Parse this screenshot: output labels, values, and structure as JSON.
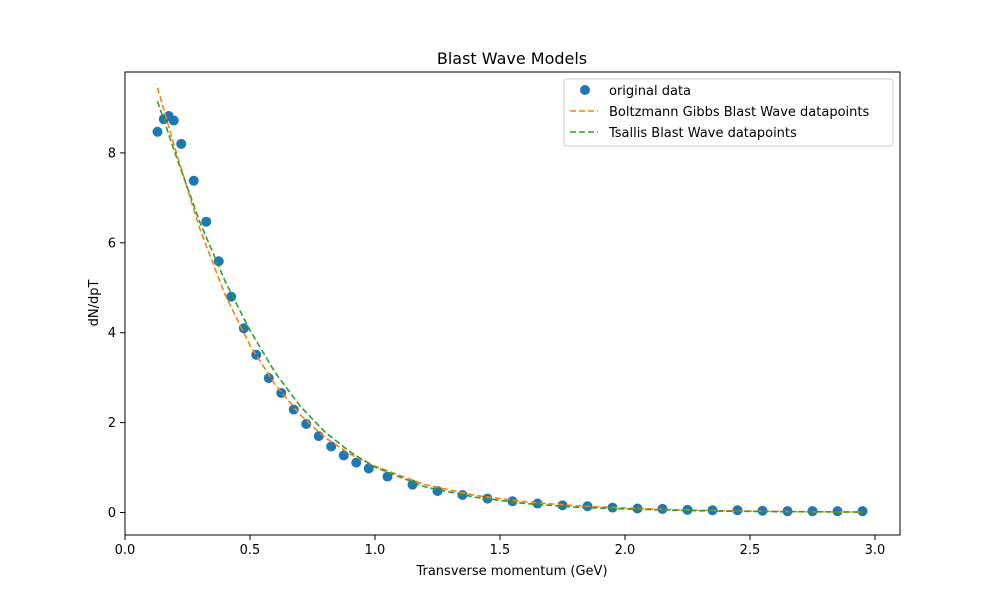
{
  "chart_data": {
    "type": "scatter",
    "title": "Blast Wave Models",
    "xlabel": "Transverse momentum (GeV)",
    "ylabel": "dN/dpT",
    "xlim": [
      0.0,
      3.1
    ],
    "ylim": [
      -0.5,
      9.8
    ],
    "xticks": [
      0.0,
      0.5,
      1.0,
      1.5,
      2.0,
      2.5,
      3.0
    ],
    "xtick_labels": [
      "0.0",
      "0.5",
      "1.0",
      "1.5",
      "2.0",
      "2.5",
      "3.0"
    ],
    "yticks": [
      0,
      2,
      4,
      6,
      8
    ],
    "ytick_labels": [
      "0",
      "2",
      "4",
      "6",
      "8"
    ],
    "grid": false,
    "legend_position": "top-right",
    "colors": {
      "original": "#1f77b4",
      "boltzmann": "#ff7f0e",
      "tsallis": "#2ca02c"
    },
    "series": [
      {
        "name": "original data",
        "kind": "scatter",
        "color": "#1f77b4",
        "x": [
          0.13,
          0.155,
          0.175,
          0.195,
          0.225,
          0.275,
          0.325,
          0.375,
          0.425,
          0.475,
          0.525,
          0.575,
          0.625,
          0.675,
          0.725,
          0.775,
          0.825,
          0.875,
          0.925,
          0.975,
          1.05,
          1.15,
          1.25,
          1.35,
          1.45,
          1.55,
          1.65,
          1.75,
          1.85,
          1.95,
          2.05,
          2.15,
          2.25,
          2.35,
          2.45,
          2.55,
          2.65,
          2.75,
          2.85,
          2.95
        ],
        "y": [
          8.47,
          8.75,
          8.82,
          8.72,
          8.2,
          7.38,
          6.47,
          5.59,
          4.8,
          4.1,
          3.51,
          2.99,
          2.66,
          2.29,
          1.97,
          1.7,
          1.47,
          1.27,
          1.11,
          0.98,
          0.8,
          0.62,
          0.48,
          0.39,
          0.31,
          0.25,
          0.2,
          0.16,
          0.14,
          0.11,
          0.09,
          0.08,
          0.06,
          0.05,
          0.05,
          0.04,
          0.03,
          0.03,
          0.03,
          0.03
        ]
      },
      {
        "name": "Boltzmann Gibbs Blast Wave datapoints",
        "kind": "dashed-line",
        "color": "#ff7f0e",
        "x": [
          0.13,
          0.2,
          0.3,
          0.4,
          0.5,
          0.6,
          0.7,
          0.8,
          0.9,
          1.0,
          1.2,
          1.4,
          1.6,
          1.8,
          2.0,
          2.2,
          2.4,
          2.6,
          2.8,
          2.95
        ],
        "y": [
          9.45,
          8.1,
          6.3,
          4.85,
          3.72,
          2.85,
          2.18,
          1.67,
          1.3,
          1.03,
          0.62,
          0.38,
          0.24,
          0.15,
          0.1,
          0.06,
          0.04,
          0.025,
          0.015,
          0.01
        ]
      },
      {
        "name": "Tsallis Blast Wave datapoints",
        "kind": "dashed-line",
        "color": "#2ca02c",
        "x": [
          0.13,
          0.2,
          0.3,
          0.4,
          0.5,
          0.6,
          0.7,
          0.8,
          0.9,
          1.0,
          1.2,
          1.4,
          1.6,
          1.8,
          2.0,
          2.2,
          2.4,
          2.6,
          2.8,
          2.95
        ],
        "y": [
          9.15,
          8.0,
          6.45,
          5.15,
          4.05,
          3.12,
          2.37,
          1.79,
          1.35,
          1.01,
          0.57,
          0.34,
          0.2,
          0.12,
          0.08,
          0.05,
          0.03,
          0.02,
          0.015,
          0.01
        ]
      }
    ]
  }
}
